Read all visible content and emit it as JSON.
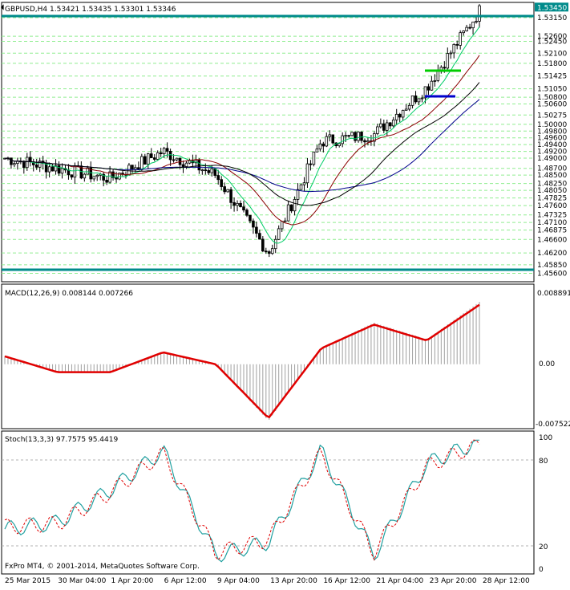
{
  "window": {
    "symbol_header": "GBPUSD,H4  1.53421 1.53435 1.53301 1.53346",
    "copyright": "FxPro MT4, © 2001-2014, MetaQuotes Software Corp."
  },
  "colors": {
    "background": "#ffffff",
    "grid": "#90ee90",
    "sr_line": "#008b8b",
    "ma_fast": "#00cc66",
    "ma_slow": "#8b0000",
    "ma_long": "#00008b",
    "ma_trend": "#000000",
    "macd_signal": "#e00000",
    "macd_hist": "#a0a0a0",
    "stoch_main": "#20a0a0",
    "stoch_signal": "#e00000",
    "green_level": "#00cc00",
    "blue_level": "#0000cc"
  },
  "price_axis": {
    "labels": [
      "1.53450",
      "1.53150",
      "1.52600",
      "1.52450",
      "1.52100",
      "1.51800",
      "1.51425",
      "1.51050",
      "1.50800",
      "1.50600",
      "1.50275",
      "1.50000",
      "1.49800",
      "1.49600",
      "1.49400",
      "1.49200",
      "1.49000",
      "1.48700",
      "1.48500",
      "1.48250",
      "1.48050",
      "1.47825",
      "1.47600",
      "1.47325",
      "1.47100",
      "1.46875",
      "1.46600",
      "1.46200",
      "1.45850",
      "1.45600"
    ],
    "current_price": "1.53450"
  },
  "macd": {
    "header": "MACD(12,26,9) 0.008144 0.007266",
    "scale": [
      "0.008891",
      "0.00",
      "-0.007522"
    ]
  },
  "stoch": {
    "header": "Stoch(13,3,3) 97.7575 95.4419",
    "scale": [
      "100",
      "80",
      "20",
      "0"
    ]
  },
  "time_axis": [
    "25 Mar 2015",
    "30 Mar 04:00",
    "1 Apr 20:00",
    "6 Apr 12:00",
    "9 Apr 04:00",
    "13 Apr 20:00",
    "16 Apr 12:00",
    "21 Apr 04:00",
    "23 Apr 20:00",
    "28 Apr 12:00"
  ],
  "chart_data": [
    {
      "type": "candlestick",
      "title": "GBPUSD,H4",
      "ylim": [
        1.4535,
        1.536
      ],
      "x": [
        "25 Mar 2015",
        "30 Mar 04:00",
        "1 Apr 20:00",
        "6 Apr 12:00",
        "9 Apr 04:00",
        "13 Apr 20:00",
        "16 Apr 12:00",
        "21 Apr 04:00",
        "23 Apr 20:00",
        "28 Apr 12:00"
      ],
      "series": [
        {
          "values": [
            1.49,
            1.487,
            1.484,
            1.492,
            1.485,
            1.462,
            1.495,
            1.497,
            1.511,
            1.5335
          ]
        }
      ]
    },
    {
      "type": "line",
      "title": "MACD(12,26,9)",
      "ylim": [
        -0.007522,
        0.008891
      ],
      "series": [
        {
          "values": [
            0.001,
            -0.001,
            -0.001,
            0.0015,
            0.0,
            -0.0068,
            0.002,
            0.005,
            0.003,
            0.0075
          ]
        }
      ]
    },
    {
      "type": "line",
      "title": "Stoch(13,3,3)",
      "ylim": [
        0,
        100
      ],
      "series": [
        {
          "values": [
            30,
            35,
            60,
            90,
            10,
            20,
            90,
            10,
            80,
            97
          ]
        },
        {
          "values": [
            32,
            34,
            58,
            88,
            12,
            22,
            88,
            12,
            78,
            95
          ]
        }
      ]
    }
  ]
}
